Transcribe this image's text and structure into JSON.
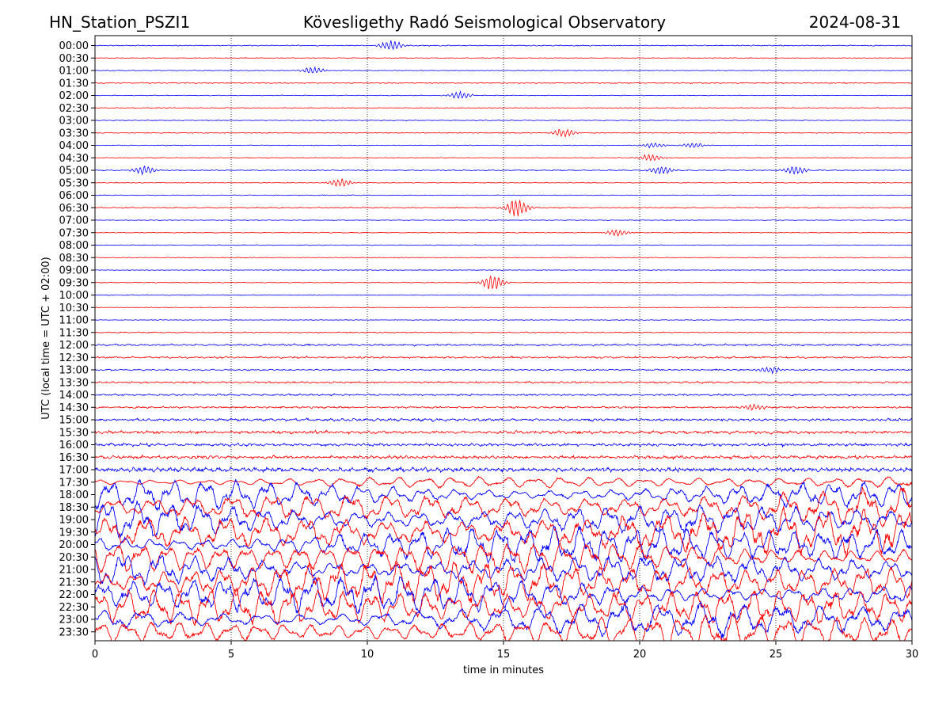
{
  "chart_data": {
    "type": "line",
    "station": "HN_Station_PSZI1",
    "title": "Kövesligethy Radó Seismological Observatory",
    "date": "2024-08-31",
    "xlabel": "time in minutes",
    "ylabel": "UTC (local time = UTC + 02:00)",
    "xlim": [
      0,
      30
    ],
    "x_ticks": [
      "0",
      "5",
      "10",
      "15",
      "20",
      "25",
      "30"
    ],
    "vertical_gridlines": [
      5,
      10,
      15,
      20,
      25
    ],
    "grid": "vertical dotted",
    "row_labels": [
      "00:00",
      "00:30",
      "01:00",
      "01:30",
      "02:00",
      "02:30",
      "03:00",
      "03:30",
      "04:00",
      "04:30",
      "05:00",
      "05:30",
      "06:00",
      "06:30",
      "07:00",
      "07:30",
      "08:00",
      "08:30",
      "09:00",
      "09:30",
      "10:00",
      "10:30",
      "11:00",
      "11:30",
      "12:00",
      "12:30",
      "13:00",
      "13:30",
      "14:00",
      "14:30",
      "15:00",
      "15:30",
      "16:00",
      "16:30",
      "17:00",
      "17:30",
      "18:00",
      "18:30",
      "19:00",
      "19:30",
      "20:00",
      "20:30",
      "21:00",
      "21:30",
      "22:00",
      "22:30",
      "23:00",
      "23:30"
    ],
    "series_colors": [
      "#0000ff",
      "#ff0000"
    ],
    "activity_levels": [
      0.03,
      0.02,
      0.02,
      0.03,
      0.02,
      0.02,
      0.02,
      0.02,
      0.02,
      0.02,
      0.03,
      0.02,
      0.02,
      0.03,
      0.02,
      0.02,
      0.02,
      0.02,
      0.02,
      0.02,
      0.02,
      0.02,
      0.02,
      0.03,
      0.05,
      0.05,
      0.04,
      0.05,
      0.05,
      0.05,
      0.07,
      0.08,
      0.08,
      0.09,
      0.12,
      0.3,
      0.65,
      0.75,
      0.8,
      0.8,
      0.85,
      0.85,
      0.8,
      0.75,
      0.7,
      0.7,
      0.65,
      0.6
    ],
    "events": [
      {
        "row": 13,
        "minute": 15.5,
        "amplitude": 0.55
      },
      {
        "row": 7,
        "minute": 17.2,
        "amplitude": 0.25
      },
      {
        "row": 10,
        "minute": 1.8,
        "amplitude": 0.25
      },
      {
        "row": 10,
        "minute": 20.8,
        "amplitude": 0.25
      },
      {
        "row": 10,
        "minute": 25.7,
        "amplitude": 0.25
      },
      {
        "row": 11,
        "minute": 9.0,
        "amplitude": 0.25
      },
      {
        "row": 9,
        "minute": 20.4,
        "amplitude": 0.2
      },
      {
        "row": 8,
        "minute": 20.5,
        "amplitude": 0.15
      },
      {
        "row": 8,
        "minute": 22.0,
        "amplitude": 0.15
      },
      {
        "row": 4,
        "minute": 13.4,
        "amplitude": 0.2
      },
      {
        "row": 15,
        "minute": 19.2,
        "amplitude": 0.2
      },
      {
        "row": 19,
        "minute": 14.6,
        "amplitude": 0.45
      },
      {
        "row": 29,
        "minute": 24.2,
        "amplitude": 0.2
      },
      {
        "row": 26,
        "minute": 24.8,
        "amplitude": 0.2
      },
      {
        "row": 0,
        "minute": 10.9,
        "amplitude": 0.3
      },
      {
        "row": 2,
        "minute": 8.0,
        "amplitude": 0.2
      }
    ]
  }
}
